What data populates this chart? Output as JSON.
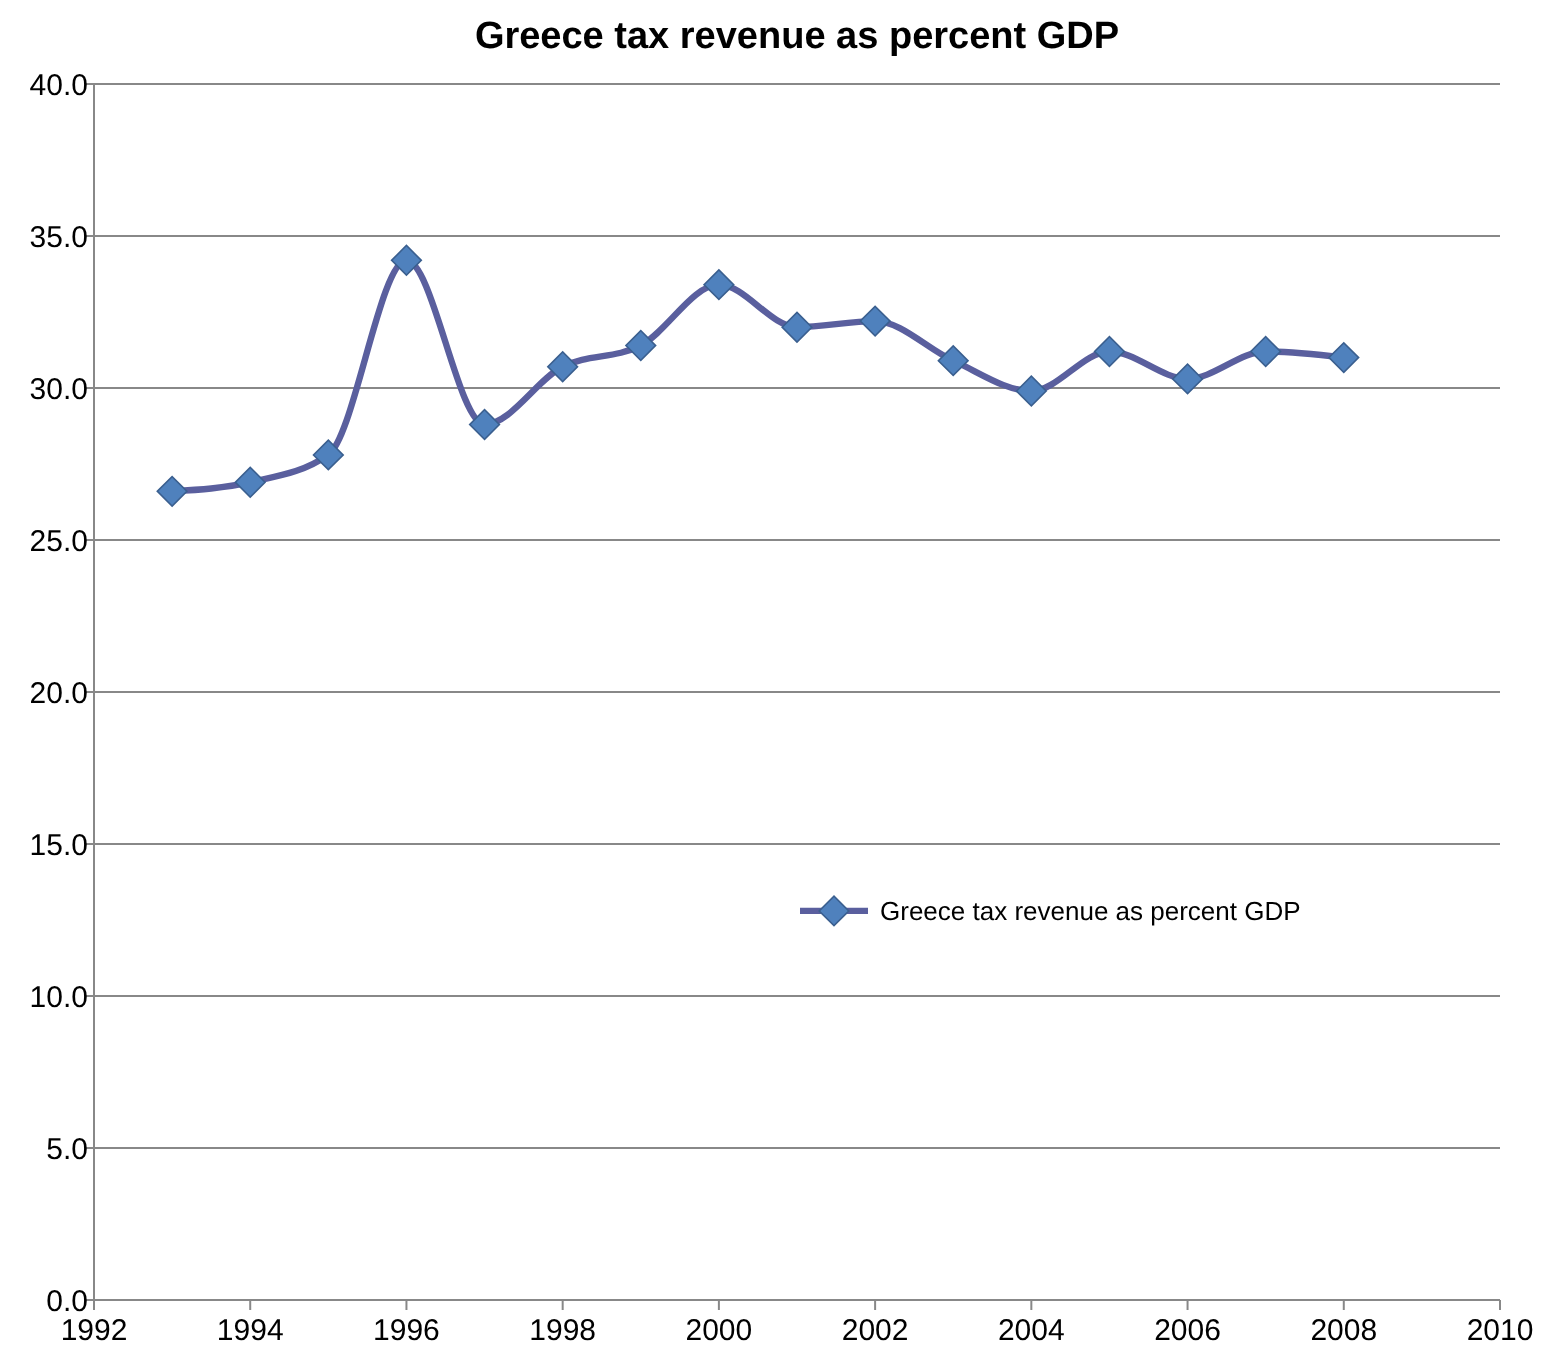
{
  "chart_data": {
    "type": "line",
    "title": "Greece tax revenue as percent GDP",
    "x": [
      1993,
      1994,
      1995,
      1996,
      1997,
      1998,
      1999,
      2000,
      2001,
      2002,
      2003,
      2004,
      2005,
      2006,
      2007,
      2008
    ],
    "series": [
      {
        "name": "Greece tax revenue as percent GDP",
        "color": "#5a5f9e",
        "values": [
          26.6,
          26.9,
          27.8,
          34.2,
          28.8,
          30.7,
          31.4,
          33.4,
          32.0,
          32.2,
          30.9,
          29.9,
          31.2,
          30.3,
          31.2,
          31.0
        ]
      }
    ],
    "xlim": [
      1992,
      2010
    ],
    "xticks": [
      1992,
      1994,
      1996,
      1998,
      2000,
      2002,
      2004,
      2006,
      2008,
      2010
    ],
    "ylim": [
      0,
      40
    ],
    "yticks": [
      {
        "value": 0,
        "label": "0.0"
      },
      {
        "value": 5,
        "label": "5.0"
      },
      {
        "value": 10,
        "label": "10.0"
      },
      {
        "value": 15,
        "label": "15.0"
      },
      {
        "value": 20,
        "label": "20.0"
      },
      {
        "value": 25,
        "label": "25.0"
      },
      {
        "value": 30,
        "label": "30.0"
      },
      {
        "value": 35,
        "label": "35.0"
      },
      {
        "value": 40,
        "label": "40.0"
      }
    ],
    "grid": "y",
    "legend": "right",
    "marker": "diamond",
    "line_style": "solid"
  }
}
